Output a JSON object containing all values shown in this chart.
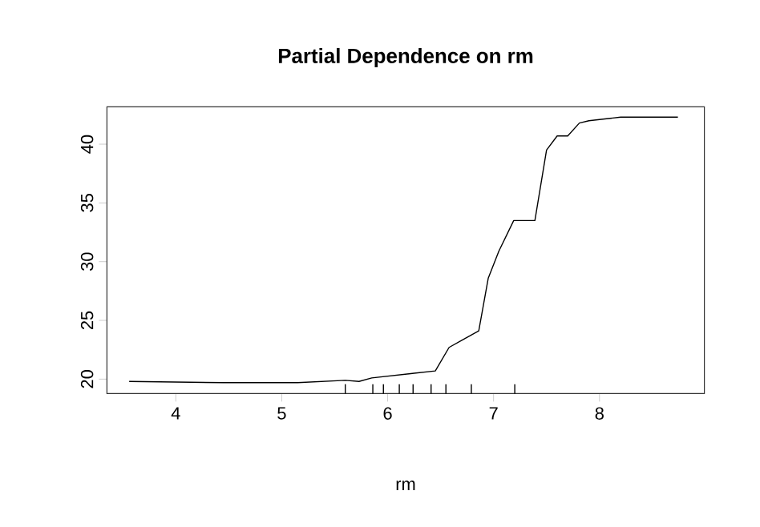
{
  "chart_data": {
    "type": "line",
    "title": "Partial Dependence on rm",
    "xlabel": "rm",
    "xlim": [
      3.35,
      8.99
    ],
    "ylim": [
      18.77,
      43.18
    ],
    "xticks": [
      4,
      5,
      6,
      7,
      8
    ],
    "yticks": [
      20,
      25,
      30,
      35,
      40
    ],
    "series": [
      {
        "color": "#000000",
        "marker": "none",
        "x": [
          3.56,
          4.45,
          5.15,
          5.6,
          5.73,
          5.85,
          6.25,
          6.45,
          6.58,
          6.7,
          6.86,
          6.95,
          7.05,
          7.19,
          7.39,
          7.5,
          7.6,
          7.7,
          7.81,
          7.9,
          8.1,
          8.2,
          8.74
        ],
        "values": [
          19.8,
          19.7,
          19.7,
          19.9,
          19.8,
          20.1,
          20.5,
          20.7,
          22.7,
          23.3,
          24.1,
          28.6,
          30.9,
          33.5,
          33.5,
          39.5,
          40.7,
          40.7,
          41.8,
          42,
          42.2,
          42.3,
          42.3
        ]
      },
      {
        "type": "bar",
        "color": "#000000",
        "x": [
          5.6,
          5.86,
          5.96,
          6.11,
          6.24,
          6.41,
          6.55,
          6.79,
          7.2
        ],
        "base": [
          18.77,
          18.77,
          18.77,
          18.77,
          18.77,
          18.77,
          18.77,
          18.77,
          18.77
        ],
        "values": [
          0.8,
          0.8,
          0.8,
          0.8,
          0.8,
          0.8,
          0.8,
          0.8,
          0.8
        ]
      }
    ]
  }
}
